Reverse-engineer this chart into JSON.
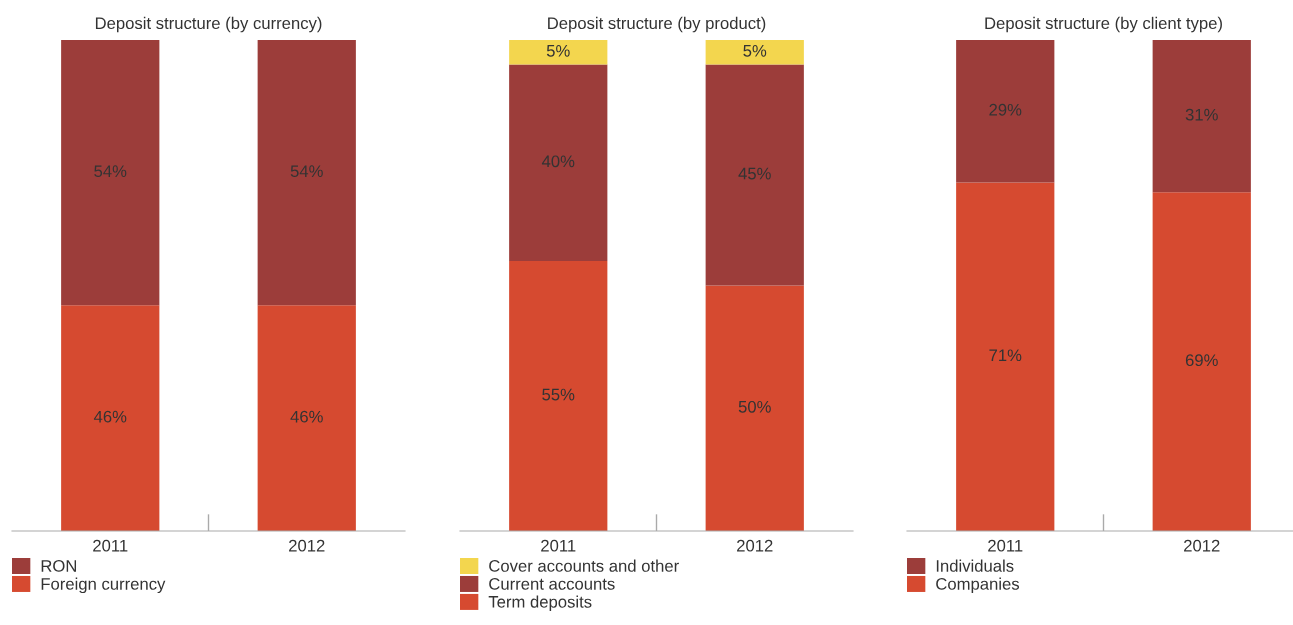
{
  "chart_data": [
    {
      "type": "bar",
      "title": "Deposit structure (by currency)",
      "categories": [
        "2011",
        "2012"
      ],
      "stacked": true,
      "tick_labels": "x",
      "legend": "bottom",
      "grid": false,
      "series": [
        {
          "name": "Foreign currency",
          "color": "#d64a30",
          "values": [
            46,
            46
          ],
          "value_labels": [
            "46%",
            "46%"
          ]
        },
        {
          "name": "RON",
          "color": "#9c3d3a",
          "values": [
            54,
            54
          ],
          "value_labels": [
            "54%",
            "54%"
          ]
        }
      ]
    },
    {
      "type": "bar",
      "title": "Deposit structure (by product)",
      "categories": [
        "2011",
        "2012"
      ],
      "stacked": true,
      "tick_labels": "x",
      "legend": "bottom",
      "grid": false,
      "series": [
        {
          "name": "Term deposits",
          "color": "#d64a30",
          "values": [
            55,
            50
          ],
          "value_labels": [
            "55%",
            "50%"
          ]
        },
        {
          "name": "Current accounts",
          "color": "#9c3d3a",
          "values": [
            40,
            45
          ],
          "value_labels": [
            "40%",
            "45%"
          ]
        },
        {
          "name": "Cover accounts and other",
          "color": "#f3d64e",
          "values": [
            5,
            5
          ],
          "value_labels": [
            "5%",
            "5%"
          ]
        }
      ]
    },
    {
      "type": "bar",
      "title": "Deposit structure (by client type)",
      "categories": [
        "2011",
        "2012"
      ],
      "stacked": true,
      "tick_labels": "x",
      "legend": "bottom",
      "grid": false,
      "series": [
        {
          "name": "Companies",
          "color": "#d64a30",
          "values": [
            71,
            69
          ],
          "value_labels": [
            "71%",
            "69%"
          ]
        },
        {
          "name": "Individuals",
          "color": "#9c3d3a",
          "values": [
            29,
            31
          ],
          "value_labels": [
            "29%",
            "31%"
          ]
        }
      ]
    }
  ]
}
